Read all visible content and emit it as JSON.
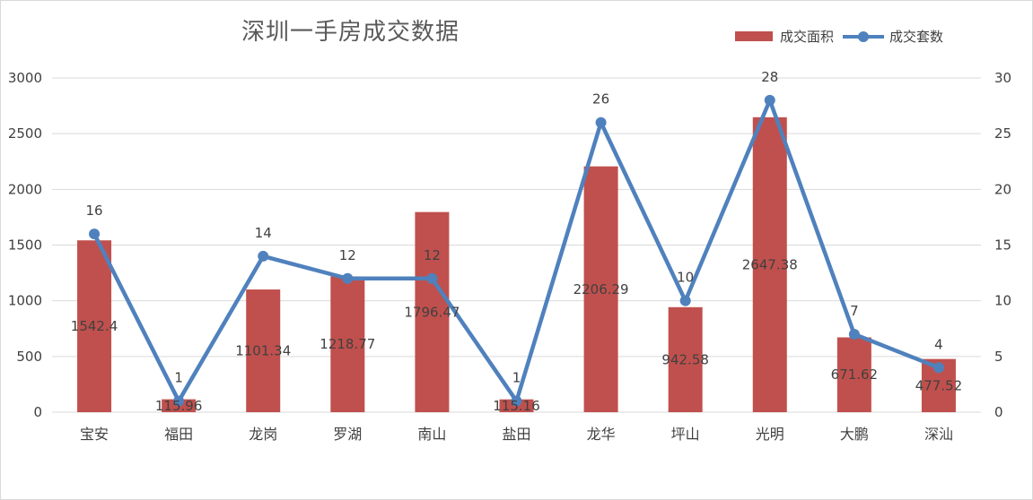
{
  "chart_data": {
    "type": "bar+line",
    "title": "深圳一手房成交数据",
    "categories": [
      "宝安",
      "福田",
      "龙岗",
      "罗湖",
      "南山",
      "盐田",
      "龙华",
      "坪山",
      "光明",
      "大鹏",
      "深汕"
    ],
    "series": [
      {
        "name": "成交面积",
        "type": "bar",
        "axis": "left",
        "color": "#c0504d",
        "values": [
          1542.4,
          115.96,
          1101.34,
          1218.77,
          1796.47,
          115.16,
          2206.29,
          942.58,
          2647.38,
          671.62,
          477.52
        ],
        "labels": [
          "1542.4",
          "115.96",
          "1101.34",
          "1218.77",
          "1796.47",
          "115.16",
          "2206.29",
          "942.58",
          "2647.38",
          "671.62",
          "477.52"
        ]
      },
      {
        "name": "成交套数",
        "type": "line",
        "axis": "right",
        "color": "#4f81bd",
        "values": [
          16,
          1,
          14,
          12,
          12,
          1,
          26,
          10,
          28,
          7,
          4
        ],
        "labels": [
          "16",
          "1",
          "14",
          "12",
          "12",
          "1",
          "26",
          "10",
          "28",
          "7",
          "4"
        ]
      }
    ],
    "y_left": {
      "range": [
        0,
        3000
      ],
      "ticks": [
        "0",
        "500",
        "1000",
        "1500",
        "2000",
        "2500",
        "3000"
      ]
    },
    "y_right": {
      "range": [
        0,
        30
      ],
      "ticks": [
        "0",
        "5",
        "10",
        "15",
        "20",
        "25",
        "30"
      ]
    },
    "grid": true,
    "legend_position": "top-right"
  }
}
